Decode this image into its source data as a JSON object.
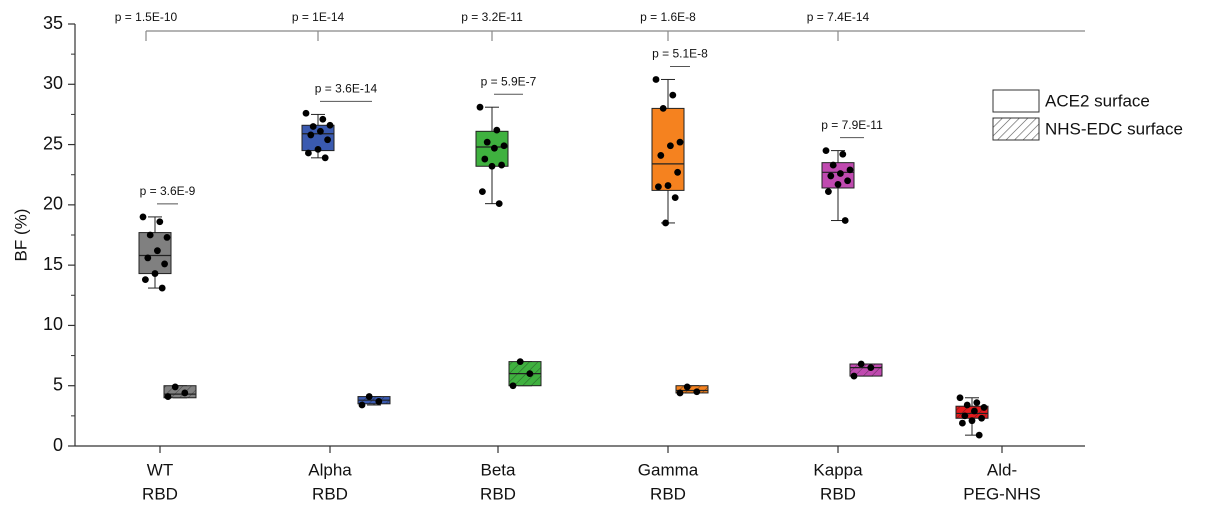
{
  "chart_data": {
    "type": "box",
    "ylabel": "BF (%)",
    "categories": [
      [
        "WT",
        "RBD"
      ],
      [
        "Alpha",
        "RBD"
      ],
      [
        "Beta",
        "RBD"
      ],
      [
        "Gamma",
        "RBD"
      ],
      [
        "Kappa",
        "RBD"
      ],
      [
        "Ald-",
        "PEG-NHS"
      ]
    ],
    "colors": [
      "#808080",
      "#3a5ab0",
      "#3fb13f",
      "#f5821f",
      "#c04ab0",
      "#e31a1c"
    ],
    "ylim": [
      0,
      35
    ],
    "yticks": [
      0,
      5,
      10,
      15,
      20,
      25,
      30,
      35
    ],
    "legend_position": "upper right",
    "series": [
      {
        "name": "ACE2 surface",
        "pattern": "solid",
        "boxes": [
          {
            "min": 13.1,
            "q1": 14.3,
            "median": 15.8,
            "q3": 17.7,
            "max": 19.0,
            "points": [
              19.0,
              18.6,
              17.5,
              17.3,
              16.2,
              15.6,
              15.1,
              14.3,
              13.8,
              13.1
            ]
          },
          {
            "min": 23.9,
            "q1": 24.5,
            "median": 25.9,
            "q3": 26.6,
            "max": 27.5,
            "points": [
              27.6,
              27.1,
              26.5,
              26.6,
              26.1,
              25.8,
              25.4,
              24.6,
              24.3,
              23.9
            ]
          },
          {
            "min": 20.1,
            "q1": 23.2,
            "median": 24.8,
            "q3": 26.1,
            "max": 28.1,
            "points": [
              28.1,
              26.2,
              25.2,
              24.9,
              24.7,
              23.8,
              23.3,
              23.2,
              21.1,
              20.1
            ]
          },
          {
            "min": 18.5,
            "q1": 21.2,
            "median": 23.4,
            "q3": 28.0,
            "max": 30.4,
            "points": [
              30.4,
              29.1,
              28.0,
              25.2,
              24.9,
              24.1,
              22.7,
              21.6,
              21.5,
              20.6,
              18.5
            ]
          },
          {
            "min": 18.7,
            "q1": 21.4,
            "median": 22.7,
            "q3": 23.5,
            "max": 24.5,
            "points": [
              24.5,
              24.2,
              23.3,
              22.9,
              22.6,
              22.4,
              22.0,
              21.7,
              21.1,
              18.7
            ]
          },
          null
        ]
      },
      {
        "name": "NHS-EDC surface",
        "pattern": "hatched",
        "boxes": [
          {
            "min": 4.0,
            "q1": 4.0,
            "median": 4.3,
            "q3": 5.0,
            "max": 5.0,
            "points": [
              4.1,
              4.4,
              4.9
            ]
          },
          {
            "min": 3.4,
            "q1": 3.5,
            "median": 3.8,
            "q3": 4.1,
            "max": 4.1,
            "points": [
              3.4,
              3.7,
              4.1
            ]
          },
          {
            "min": 5.0,
            "q1": 5.0,
            "median": 6.0,
            "q3": 7.0,
            "max": 7.0,
            "points": [
              5.0,
              6.0,
              7.0
            ]
          },
          {
            "min": 4.4,
            "q1": 4.4,
            "median": 4.6,
            "q3": 5.0,
            "max": 5.0,
            "points": [
              4.4,
              4.5,
              4.9
            ]
          },
          {
            "min": 5.8,
            "q1": 5.8,
            "median": 6.5,
            "q3": 6.8,
            "max": 6.8,
            "points": [
              5.8,
              6.5,
              6.8
            ]
          },
          {
            "min": 0.9,
            "q1": 2.3,
            "median": 2.7,
            "q3": 3.3,
            "max": 4.0,
            "points": [
              4.0,
              3.6,
              3.4,
              3.2,
              2.9,
              2.5,
              2.3,
              2.1,
              1.9,
              0.9
            ]
          }
        ]
      }
    ],
    "top_p_values": [
      "p = 1.5E-10",
      "p = 1E-14",
      "p = 3.2E-11",
      "p = 1.6E-8",
      "p = 7.4E-14"
    ],
    "pair_p_values": [
      "p = 3.6E-9",
      "p = 3.6E-14",
      "p = 5.9E-7",
      "p = 5.1E-8",
      "p = 7.9E-11"
    ]
  }
}
